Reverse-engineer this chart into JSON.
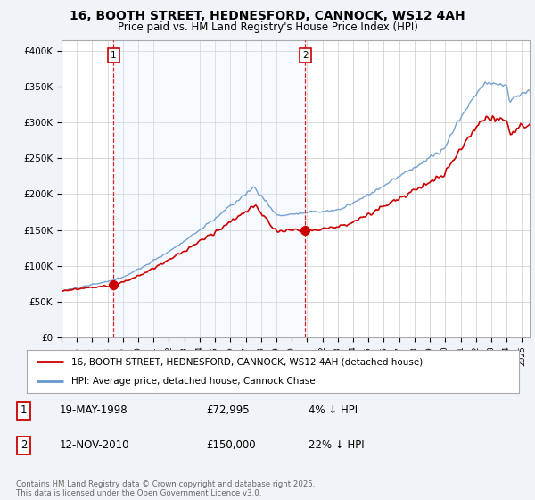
{
  "title": "16, BOOTH STREET, HEDNESFORD, CANNOCK, WS12 4AH",
  "subtitle": "Price paid vs. HM Land Registry's House Price Index (HPI)",
  "ylabel_ticks": [
    "£0",
    "£50K",
    "£100K",
    "£150K",
    "£200K",
    "£250K",
    "£300K",
    "£350K",
    "£400K"
  ],
  "ytick_values": [
    0,
    50000,
    100000,
    150000,
    200000,
    250000,
    300000,
    350000,
    400000
  ],
  "ylim": [
    0,
    415000
  ],
  "xlim_start": 1995.0,
  "xlim_end": 2025.5,
  "purchase1_date": 1998.38,
  "purchase1_price": 72995,
  "purchase1_label": "1",
  "purchase2_date": 2010.87,
  "purchase2_price": 150000,
  "purchase2_label": "2",
  "hpi_color": "#6699cc",
  "price_color": "#cc0000",
  "shade_color": "#ddeeff",
  "vline_color": "#cc0000",
  "background_color": "#f0f4f8",
  "plot_bg_color": "#ffffff",
  "grid_color": "#cccccc",
  "legend_line1": "16, BOOTH STREET, HEDNESFORD, CANNOCK, WS12 4AH (detached house)",
  "legend_line2": "HPI: Average price, detached house, Cannock Chase",
  "table_row1": [
    "1",
    "19-MAY-1998",
    "£72,995",
    "4% ↓ HPI"
  ],
  "table_row2": [
    "2",
    "12-NOV-2010",
    "£150,000",
    "22% ↓ HPI"
  ],
  "copyright_text": "Contains HM Land Registry data © Crown copyright and database right 2025.\nThis data is licensed under the Open Government Licence v3.0.",
  "title_fontsize": 10,
  "subtitle_fontsize": 8.5,
  "tick_fontsize": 7.5,
  "legend_fontsize": 7.5
}
